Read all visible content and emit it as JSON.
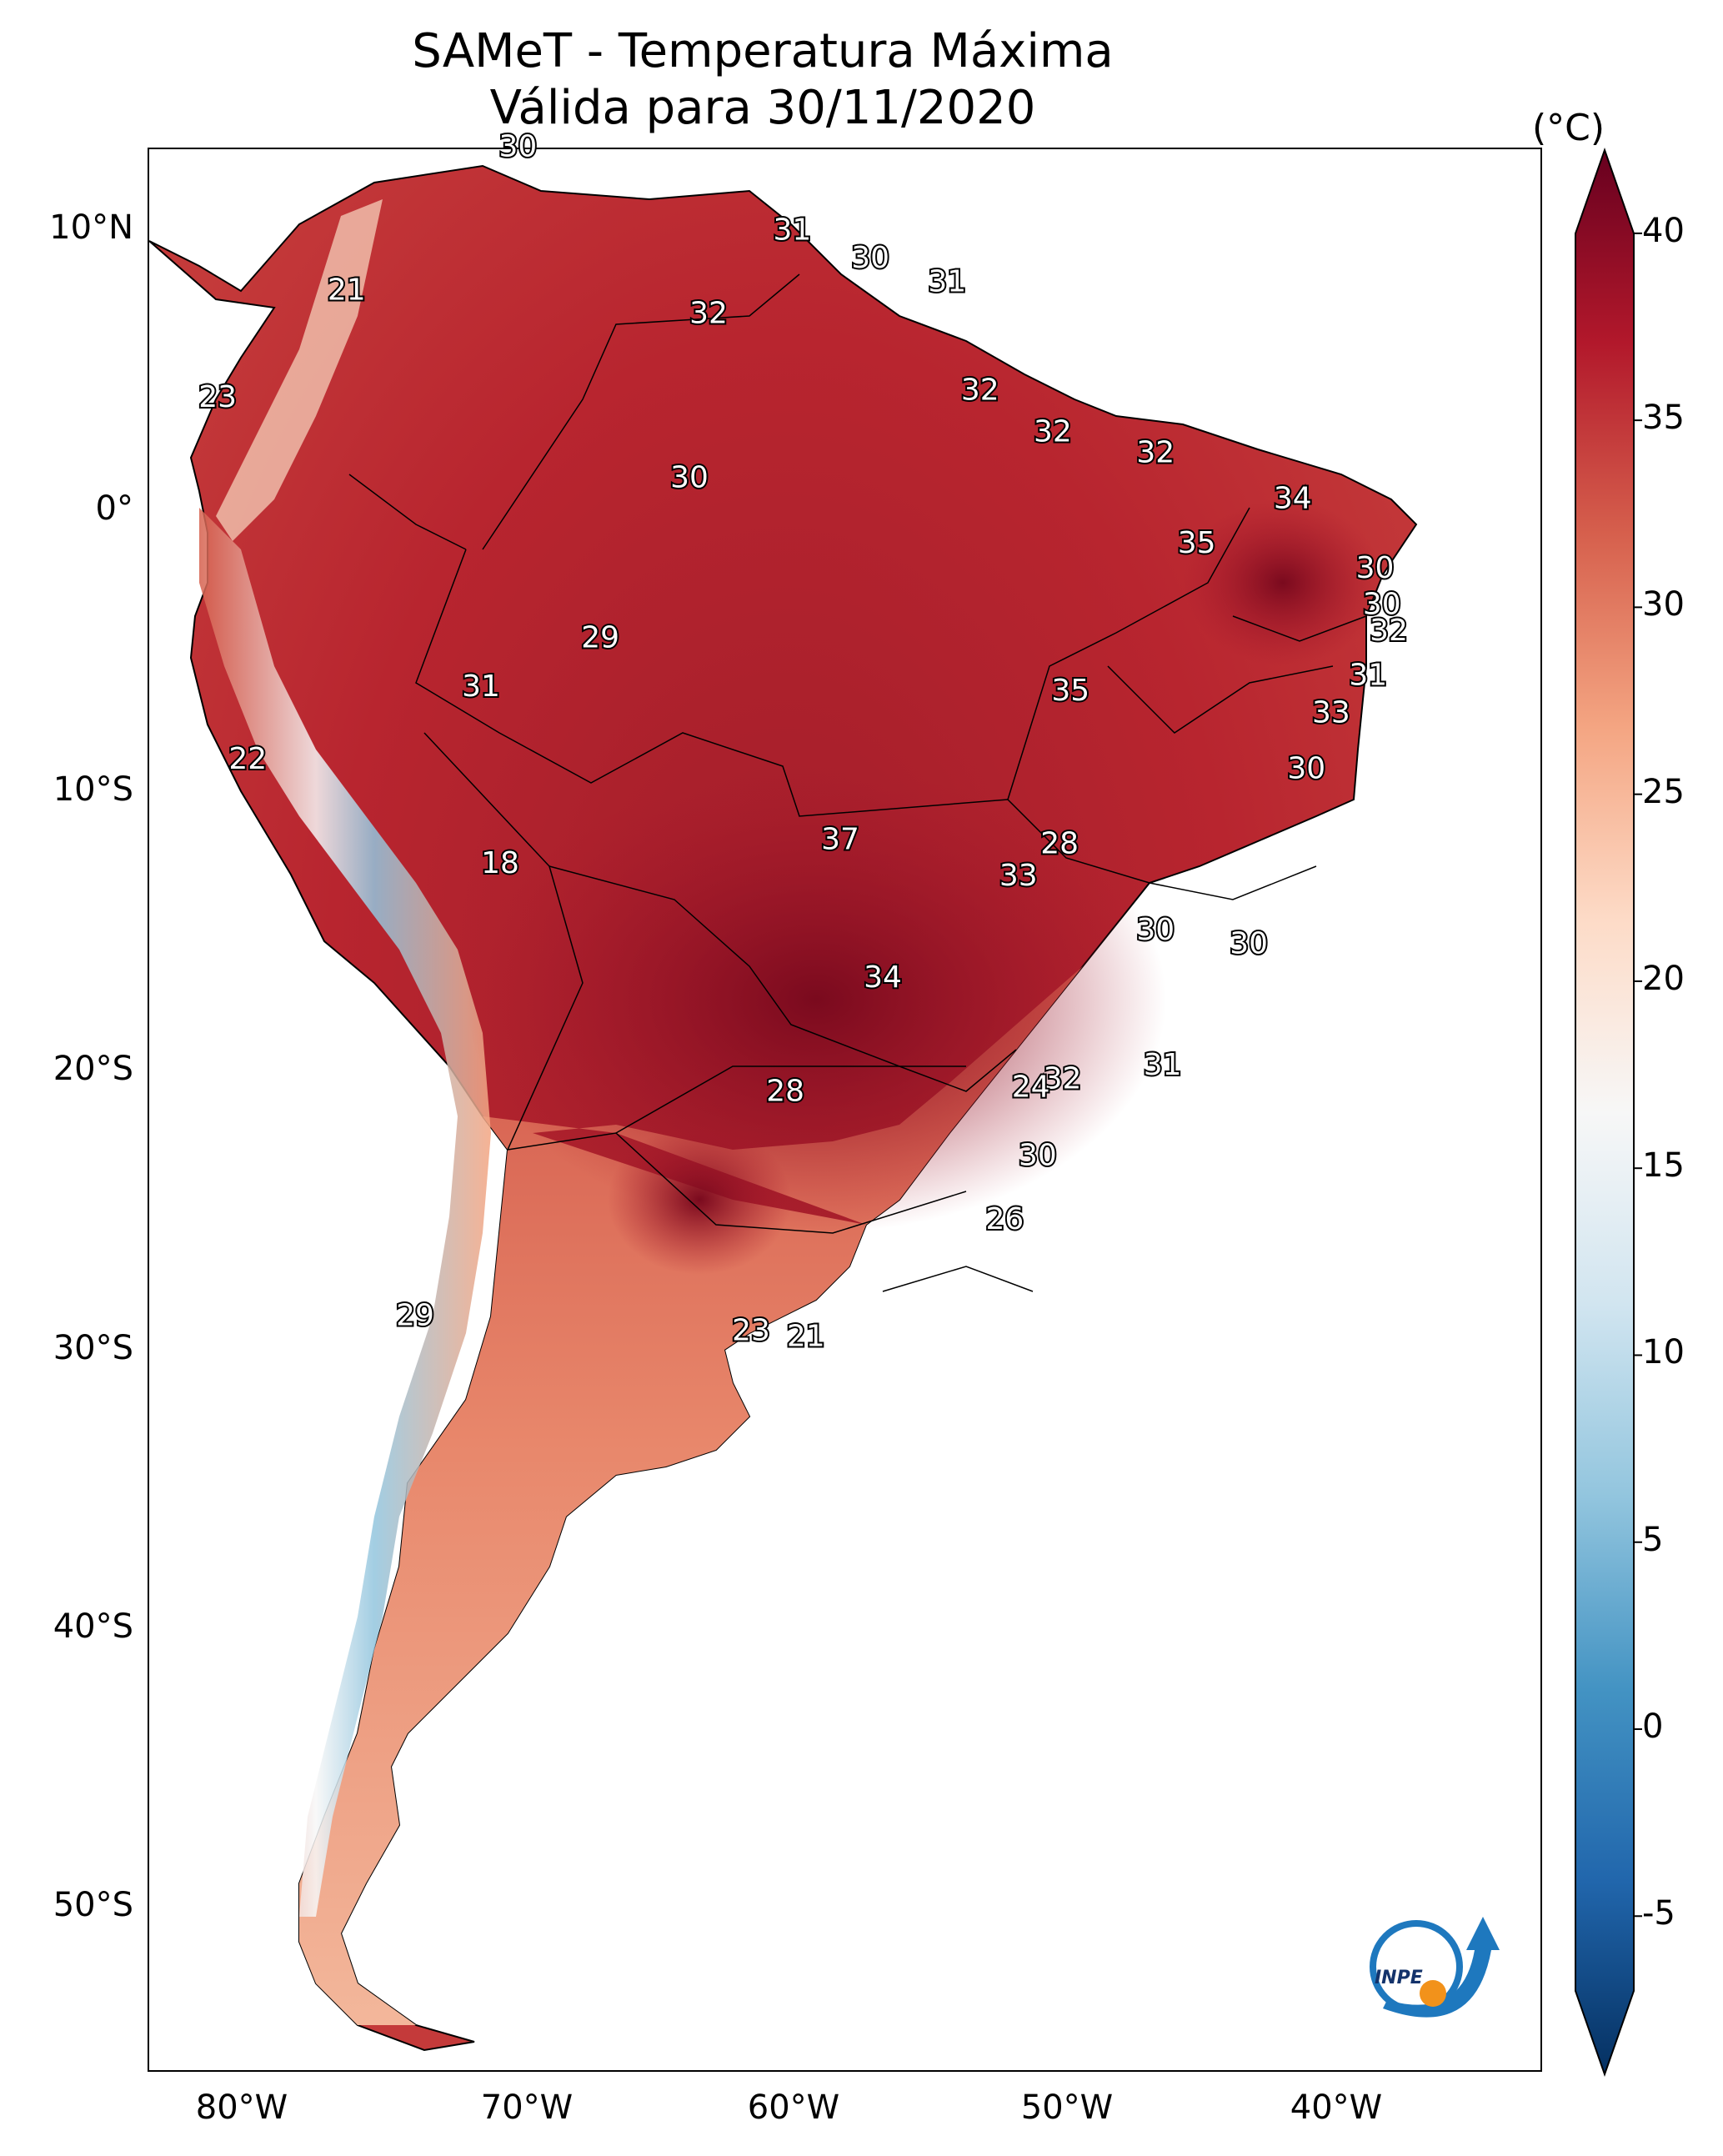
{
  "title": "SAMeT - Temperatura Máxima",
  "subtitle": "Válida para 30/11/2020",
  "colorbar": {
    "unit": "(°C)",
    "ticks": [
      "40",
      "35",
      "30",
      "25",
      "20",
      "15",
      "10",
      "5",
      "0",
      "-5"
    ],
    "min": -7,
    "max": 41,
    "colors": [
      "#053061",
      "#2166ac",
      "#4393c3",
      "#92c5de",
      "#d1e5f0",
      "#f7f7f7",
      "#fddbc7",
      "#f4a582",
      "#d6604d",
      "#b2182b",
      "#67001f"
    ]
  },
  "axes": {
    "lat_labels": [
      "10°N",
      "0°",
      "10°S",
      "20°S",
      "30°S",
      "40°S",
      "50°S"
    ],
    "lon_labels": [
      "80°W",
      "70°W",
      "60°W",
      "50°W",
      "40°W"
    ]
  },
  "contour_labels": [
    "30",
    "31",
    "30",
    "31",
    "21",
    "32",
    "23",
    "32",
    "32",
    "30",
    "32",
    "34",
    "35",
    "30",
    "30",
    "32",
    "29",
    "31",
    "35",
    "31",
    "33",
    "22",
    "30",
    "37",
    "28",
    "18",
    "33",
    "30",
    "30",
    "34",
    "31",
    "32",
    "28",
    "24",
    "30",
    "26",
    "29",
    "23",
    "21"
  ],
  "logo": {
    "text": "INPE"
  }
}
